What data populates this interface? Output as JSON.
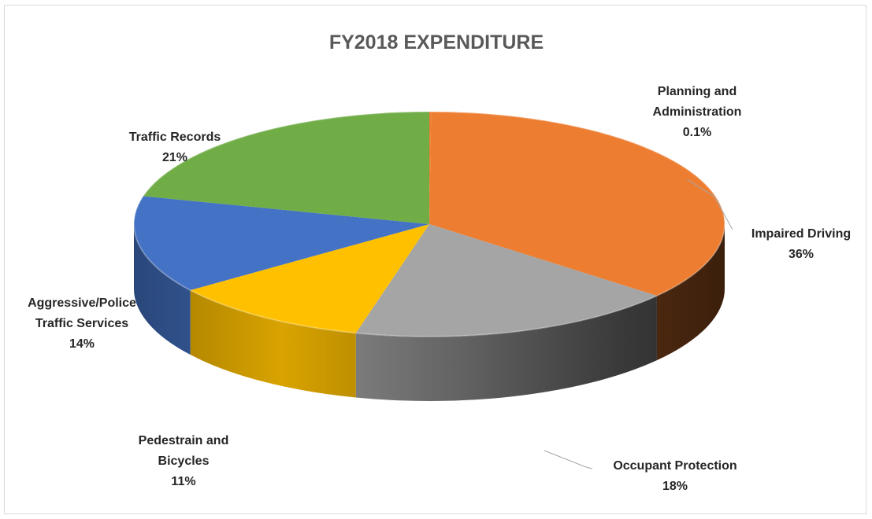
{
  "chart_data": {
    "type": "pie",
    "style": "3d",
    "title": "FY2018 EXPENDITURE",
    "slices": [
      {
        "name": "Planning and Administration",
        "label_lines": [
          "Planning and",
          "Administration"
        ],
        "pct_label": "0.1%",
        "value": 0.1,
        "color": "#ed7d31"
      },
      {
        "name": "Impaired Driving",
        "label_lines": [
          "Impaired Driving"
        ],
        "pct_label": "36%",
        "value": 35.9,
        "color": "#ed7d31"
      },
      {
        "name": "Occupant Protection",
        "label_lines": [
          "Occupant Protection"
        ],
        "pct_label": "18%",
        "value": 18,
        "color": "#a5a5a5"
      },
      {
        "name": "Pedestrain and Bicycles",
        "label_lines": [
          "Pedestrain and",
          "Bicycles"
        ],
        "pct_label": "11%",
        "value": 11,
        "color": "#ffc000"
      },
      {
        "name": "Aggressive/Police Traffic Services",
        "label_lines": [
          "Aggressive/Police",
          "Traffic Services"
        ],
        "pct_label": "14%",
        "value": 14,
        "color": "#4472c4"
      },
      {
        "name": "Traffic Records",
        "label_lines": [
          "Traffic Records"
        ],
        "pct_label": "21%",
        "value": 21,
        "color": "#70ad47"
      }
    ]
  }
}
